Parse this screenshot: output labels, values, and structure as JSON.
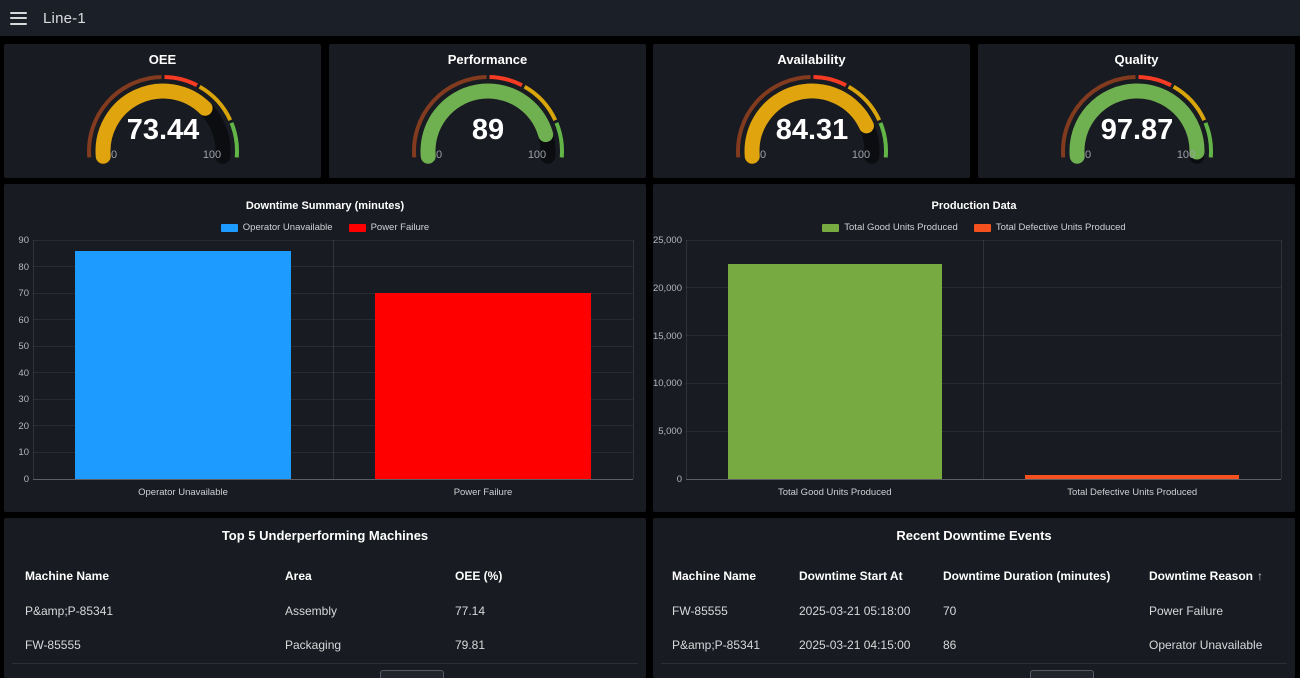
{
  "topbar": {
    "title": "Line-1",
    "menu_icon": "hamburger-icon"
  },
  "colors": {
    "page_bg": "#000000",
    "panel_bg": "#181b21",
    "topbar_bg": "#1b1f27",
    "blue_bar": "#1e9bff",
    "red_bar": "#ff0000",
    "green_bar": "#77ab41",
    "orange_bar": "#f4511e",
    "gauge_orange": "#e0a50e",
    "gauge_green": "#6fb051",
    "gauge_track": "#0c0d10"
  },
  "gauge_row": {
    "min_label": "0",
    "max_label": "100",
    "track_color": "#0c0d10",
    "thresholds": [
      {
        "from": 0.0,
        "to": 0.5,
        "color": "#823b1e"
      },
      {
        "from": 0.5,
        "to": 0.65,
        "color": "#f53b24"
      },
      {
        "from": 0.65,
        "to": 0.85,
        "color": "#d9a50b"
      },
      {
        "from": 0.85,
        "to": 1.0,
        "color": "#62b546"
      }
    ],
    "gauges": [
      {
        "title": "OEE",
        "value": 73.44,
        "display": "73.44",
        "fill_color": "#e0a50e"
      },
      {
        "title": "Performance",
        "value": 89,
        "display": "89",
        "fill_color": "#6fb051"
      },
      {
        "title": "Availability",
        "value": 84.31,
        "display": "84.31",
        "fill_color": "#e0a50e"
      },
      {
        "title": "Quality",
        "value": 97.87,
        "display": "97.87",
        "fill_color": "#6fb051"
      }
    ]
  },
  "chart_data": [
    {
      "type": "bar",
      "title": "Downtime Summary (minutes)",
      "categories": [
        "Operator Unavailable",
        "Power Failure"
      ],
      "values": [
        86,
        70
      ],
      "bar_colors": [
        "#1e9bff",
        "#ff0000"
      ],
      "legend": [
        {
          "label": "Operator Unavailable",
          "color": "#1e9bff"
        },
        {
          "label": "Power Failure",
          "color": "#ff0000"
        }
      ],
      "legend_position": "top",
      "grid": true,
      "xlabel": "",
      "ylabel": "",
      "ylim": [
        0,
        90
      ],
      "ytick_values": [
        0,
        10,
        20,
        30,
        40,
        50,
        60,
        70,
        80,
        90
      ],
      "ytick_labels": [
        "0",
        "10",
        "20",
        "30",
        "40",
        "50",
        "60",
        "70",
        "80",
        "90"
      ]
    },
    {
      "type": "bar",
      "title": "Production Data",
      "categories": [
        "Total Good Units Produced",
        "Total Defective Units Produced"
      ],
      "values": [
        22500,
        400
      ],
      "bar_colors": [
        "#77ab41",
        "#f4511e"
      ],
      "legend": [
        {
          "label": "Total Good Units Produced",
          "color": "#77ab41"
        },
        {
          "label": "Total Defective Units Produced",
          "color": "#f4511e"
        }
      ],
      "legend_position": "top",
      "grid": true,
      "xlabel": "",
      "ylabel": "",
      "ylim": [
        0,
        25000
      ],
      "ytick_values": [
        0,
        5000,
        10000,
        15000,
        20000,
        25000
      ],
      "ytick_labels": [
        "0",
        "5,000",
        "10,000",
        "15,000",
        "20,000",
        "25,000"
      ]
    }
  ],
  "tables": [
    {
      "title": "Top 5 Underperforming Machines",
      "columns": [
        "Machine Name",
        "Area",
        "OEE (%)"
      ],
      "rows": [
        [
          "P&amp;P-85341",
          "Assembly",
          "77.14"
        ],
        [
          "FW-85555",
          "Packaging",
          "79.81"
        ]
      ]
    },
    {
      "title": "Recent Downtime Events",
      "columns": [
        "Machine Name",
        "Downtime Start At",
        "Downtime Duration (minutes)",
        "Downtime Reason"
      ],
      "sort_column_index": 3,
      "sort_icon": "↑",
      "rows": [
        [
          "FW-85555",
          "2025-03-21 05:18:00",
          "70",
          "Power Failure"
        ],
        [
          "P&amp;P-85341",
          "2025-03-21 04:15:00",
          "86",
          "Operator Unavailable"
        ]
      ]
    }
  ]
}
